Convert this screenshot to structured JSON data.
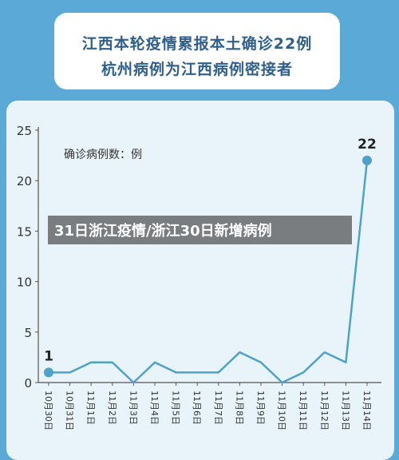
{
  "header": {
    "line1": "江西本轮疫情累报本土确诊22例",
    "line2": "杭州病例为江西病例密接者"
  },
  "overlay_caption": "31日浙江疫情/浙江30日新增病例",
  "colors": {
    "background": "#5aa9d6",
    "panel": "#e8f4f9",
    "line": "#4ea1c9",
    "text": "#2f5f8a"
  },
  "chart_data": {
    "type": "line",
    "title": "",
    "ylabel": "确诊病例数：例",
    "xlabel": "",
    "ylim": [
      0,
      25
    ],
    "yticks": [
      0,
      5,
      10,
      15,
      20,
      25
    ],
    "grid": false,
    "categories": [
      "10月30日",
      "10月31日",
      "11月1日",
      "11月2日",
      "11月3日",
      "11月4日",
      "11月5日",
      "11月6日",
      "11月7日",
      "11月8日",
      "11月9日",
      "11月10日",
      "11月11日",
      "11月12日",
      "11月13日",
      "11月14日"
    ],
    "series": [
      {
        "values": [
          1,
          1,
          2,
          2,
          0,
          2,
          1,
          1,
          1,
          3,
          2,
          0,
          1,
          3,
          2,
          22
        ]
      }
    ],
    "annotations": [
      {
        "index": 0,
        "text": "1"
      },
      {
        "index": 15,
        "text": "22"
      }
    ]
  }
}
